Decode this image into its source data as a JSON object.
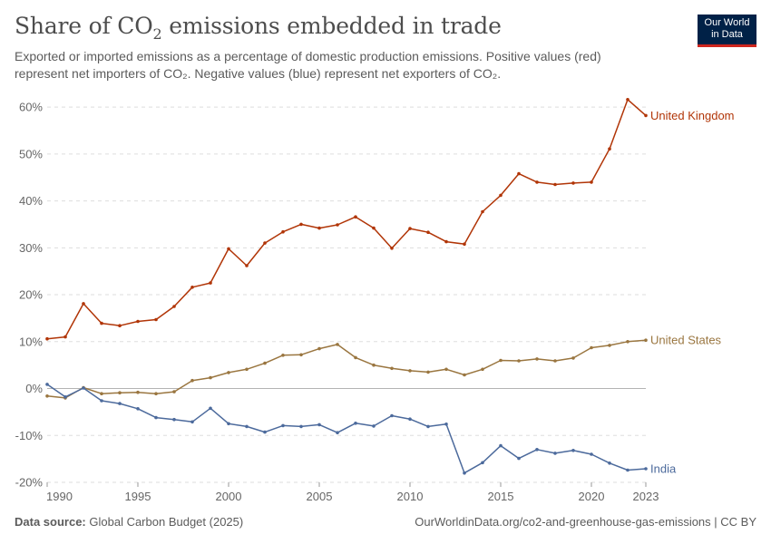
{
  "header": {
    "title_main": "Share of CO",
    "title_sub": "2",
    "title_rest": " emissions embedded in trade",
    "subtitle_line1": "Exported or imported emissions as a percentage of domestic production emissions. Positive values (red)",
    "subtitle_line2": "represent net importers of CO₂. Negative values (blue) represent net exporters of CO₂."
  },
  "logo": {
    "line1": "Our World",
    "line2": "in Data"
  },
  "footer": {
    "source_label": "Data source:",
    "source_value": "Global Carbon Budget (2025)",
    "right": "OurWorldinData.org/co2-and-greenhouse-gas-emissions | CC BY"
  },
  "chart_data": {
    "type": "line",
    "title": "Share of CO₂ emissions embedded in trade",
    "xlabel": "",
    "ylabel": "",
    "xlim": [
      1990,
      2023
    ],
    "ylim": [
      -20,
      62
    ],
    "x_ticks": [
      1990,
      1995,
      2000,
      2005,
      2010,
      2015,
      2020,
      2023
    ],
    "x_tick_labels": [
      "1990",
      "1995",
      "2000",
      "2005",
      "2010",
      "2015",
      "2020",
      "2023"
    ],
    "y_ticks": [
      -20,
      -10,
      0,
      10,
      20,
      30,
      40,
      50,
      60
    ],
    "y_tick_labels": [
      "-20%",
      "-10%",
      "0%",
      "10%",
      "20%",
      "30%",
      "40%",
      "50%",
      "60%"
    ],
    "grid": "horizontal dashed",
    "x": [
      1990,
      1991,
      1992,
      1993,
      1994,
      1995,
      1996,
      1997,
      1998,
      1999,
      2000,
      2001,
      2002,
      2003,
      2004,
      2005,
      2006,
      2007,
      2008,
      2009,
      2010,
      2011,
      2012,
      2013,
      2014,
      2015,
      2016,
      2017,
      2018,
      2019,
      2020,
      2021,
      2022,
      2023
    ],
    "series": [
      {
        "name": "United Kingdom",
        "color": "#b13507",
        "values": [
          10.6,
          11.0,
          18.1,
          13.9,
          13.4,
          14.3,
          14.7,
          17.5,
          21.6,
          22.5,
          29.8,
          26.2,
          31.0,
          33.4,
          35.0,
          34.2,
          34.9,
          36.6,
          34.2,
          29.9,
          34.1,
          33.3,
          31.3,
          30.8,
          37.7,
          41.2,
          45.8,
          44.0,
          43.5,
          43.8,
          44.0,
          51.1,
          61.6,
          58.2
        ]
      },
      {
        "name": "United States",
        "color": "#9a7640",
        "values": [
          -1.6,
          -2.0,
          0.2,
          -1.1,
          -0.9,
          -0.8,
          -1.1,
          -0.7,
          1.7,
          2.3,
          3.4,
          4.1,
          5.4,
          7.1,
          7.2,
          8.5,
          9.4,
          6.6,
          5.0,
          4.3,
          3.8,
          3.5,
          4.1,
          2.9,
          4.1,
          6.0,
          5.9,
          6.3,
          5.9,
          6.5,
          8.7,
          9.2,
          10.0,
          10.3
        ]
      },
      {
        "name": "India",
        "color": "#4c6a9c",
        "values": [
          0.9,
          -1.8,
          0.1,
          -2.6,
          -3.2,
          -4.3,
          -6.2,
          -6.6,
          -7.1,
          -4.2,
          -7.5,
          -8.1,
          -9.3,
          -7.9,
          -8.1,
          -7.7,
          -9.4,
          -7.4,
          -8.0,
          -5.8,
          -6.5,
          -8.1,
          -7.6,
          -18.0,
          -15.8,
          -12.2,
          -14.9,
          -13.0,
          -13.8,
          -13.2,
          -14.0,
          -15.9,
          -17.4,
          -17.1
        ]
      }
    ]
  }
}
